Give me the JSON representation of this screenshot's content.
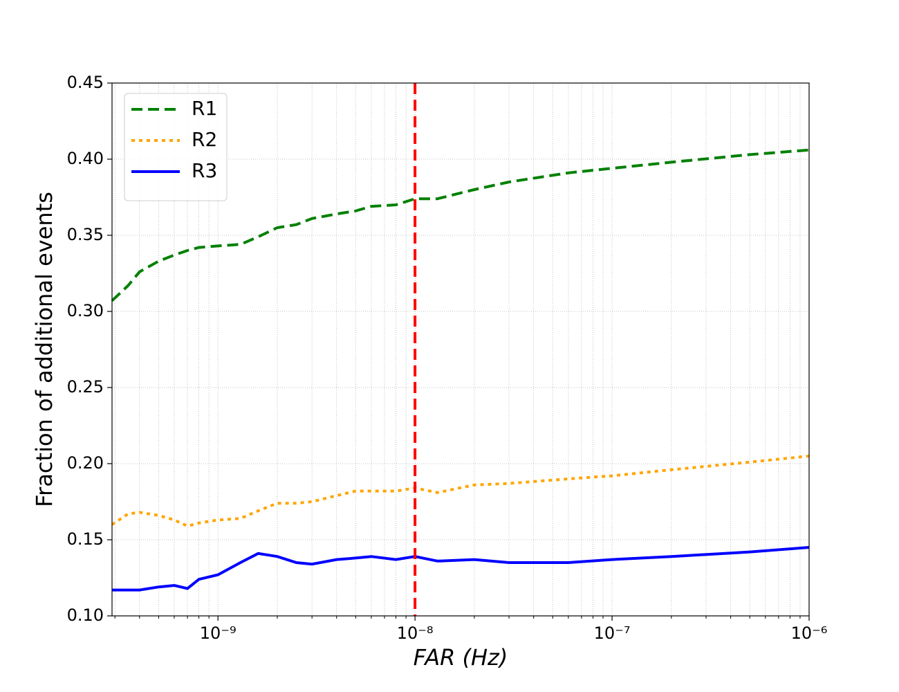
{
  "chart_data": {
    "type": "line",
    "x_label": "FAR (Hz)",
    "y_label": "Fraction of additional events",
    "x_scale": "log",
    "x": [
      2.9e-10,
      3.5e-10,
      4e-10,
      5e-10,
      6e-10,
      7e-10,
      8e-10,
      1e-09,
      1.3e-09,
      1.6e-09,
      2e-09,
      2.5e-09,
      3e-09,
      4e-09,
      5e-09,
      6e-09,
      8e-09,
      1e-08,
      1.3e-08,
      2e-08,
      3e-08,
      6e-08,
      1e-07,
      2e-07,
      5e-07,
      1e-06
    ],
    "series": [
      {
        "name": "R1",
        "color": "#008000",
        "linestyle": "dashed",
        "values": [
          0.307,
          0.317,
          0.326,
          0.333,
          0.337,
          0.34,
          0.342,
          0.343,
          0.344,
          0.349,
          0.355,
          0.357,
          0.361,
          0.364,
          0.366,
          0.369,
          0.37,
          0.374,
          0.374,
          0.38,
          0.385,
          0.391,
          0.394,
          0.398,
          0.403,
          0.406
        ]
      },
      {
        "name": "R2",
        "color": "#ffa500",
        "linestyle": "dotted",
        "values": [
          0.16,
          0.167,
          0.168,
          0.166,
          0.163,
          0.159,
          0.161,
          0.163,
          0.164,
          0.169,
          0.174,
          0.174,
          0.175,
          0.179,
          0.182,
          0.182,
          0.182,
          0.184,
          0.181,
          0.186,
          0.187,
          0.19,
          0.192,
          0.196,
          0.201,
          0.205
        ]
      },
      {
        "name": "R3",
        "color": "#0000ff",
        "linestyle": "solid",
        "values": [
          0.117,
          0.117,
          0.117,
          0.119,
          0.12,
          0.118,
          0.124,
          0.127,
          0.135,
          0.141,
          0.139,
          0.135,
          0.134,
          0.137,
          0.138,
          0.139,
          0.137,
          0.139,
          0.136,
          0.137,
          0.135,
          0.135,
          0.137,
          0.139,
          0.142,
          0.145
        ]
      }
    ],
    "vline": {
      "value": 1e-08,
      "color": "#ff0000",
      "linestyle": "dashed"
    },
    "xlim": [
      2.9e-10,
      1e-06
    ],
    "xticks": [
      {
        "value": 1e-09,
        "label": "10⁻⁹"
      },
      {
        "value": 1e-08,
        "label": "10⁻⁸"
      },
      {
        "value": 1e-07,
        "label": "10⁻⁷"
      },
      {
        "value": 1e-06,
        "label": "10⁻⁶"
      }
    ],
    "ylim": [
      0.1,
      0.45
    ],
    "yticks": [
      {
        "value": 0.1,
        "label": "0.10"
      },
      0.15,
      {
        "value": 0.2,
        "label": "0.20"
      },
      0.25,
      {
        "value": 0.3,
        "label": "0.30"
      },
      0.35,
      {
        "value": 0.4,
        "label": "0.40"
      },
      0.45
    ],
    "grid": true,
    "minor_grid": true,
    "legend": "upper left"
  }
}
